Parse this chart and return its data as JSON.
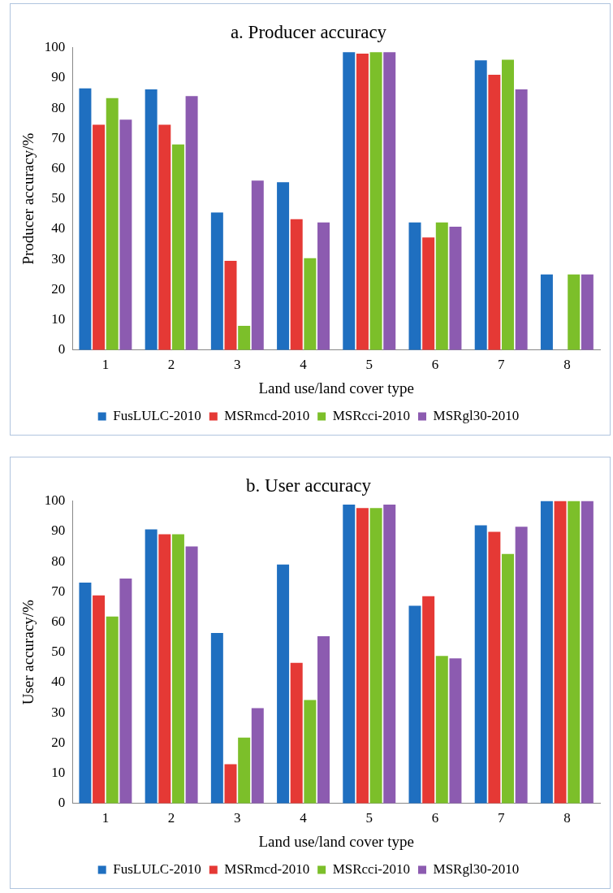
{
  "chart_data": [
    {
      "type": "bar",
      "title": "a. Producer accuracy",
      "xlabel": "Land use/land cover type",
      "ylabel": "Producer accuracy/%",
      "categories": [
        "1",
        "2",
        "3",
        "4",
        "5",
        "6",
        "7",
        "8"
      ],
      "ylim": [
        0,
        100
      ],
      "yticks": [
        0,
        10,
        20,
        30,
        40,
        50,
        60,
        70,
        80,
        90,
        100
      ],
      "grid": false,
      "legend": "bottom",
      "series": [
        {
          "name": "FusLULC-2010",
          "color": "#1f6fc0",
          "values": [
            86.5,
            86.2,
            45.5,
            55.5,
            98.5,
            42.2,
            95.8,
            25
          ]
        },
        {
          "name": "MSRmcd-2010",
          "color": "#e53935",
          "values": [
            74.5,
            74.5,
            29.5,
            43.3,
            98,
            37.2,
            91,
            0
          ]
        },
        {
          "name": "MSRcci-2010",
          "color": "#7cbf2a",
          "values": [
            83.3,
            68,
            8,
            30.4,
            98.5,
            42.2,
            96,
            25
          ]
        },
        {
          "name": "MSRgl30-2010",
          "color": "#8c5bb0",
          "values": [
            76.2,
            84,
            56,
            42.2,
            98.5,
            40.8,
            86.2,
            25
          ]
        }
      ]
    },
    {
      "type": "bar",
      "title": "b. User accuracy",
      "xlabel": "Land use/land cover type",
      "ylabel": "User accuracy/%",
      "categories": [
        "1",
        "2",
        "3",
        "4",
        "5",
        "6",
        "7",
        "8"
      ],
      "ylim": [
        0,
        100
      ],
      "yticks": [
        0,
        10,
        20,
        30,
        40,
        50,
        60,
        70,
        80,
        90,
        100
      ],
      "grid": false,
      "legend": "bottom",
      "series": [
        {
          "name": "FusLULC-2010",
          "color": "#1f6fc0",
          "values": [
            73,
            90.6,
            56.4,
            79,
            98.8,
            65.4,
            92,
            100
          ]
        },
        {
          "name": "MSRmcd-2010",
          "color": "#e53935",
          "values": [
            68.8,
            89,
            13,
            46.5,
            97.7,
            68.5,
            89.8,
            100
          ]
        },
        {
          "name": "MSRcci-2010",
          "color": "#7cbf2a",
          "values": [
            61.8,
            89,
            21.8,
            34.2,
            97.7,
            48.8,
            82.5,
            100
          ]
        },
        {
          "name": "MSRgl30-2010",
          "color": "#8c5bb0",
          "values": [
            74.4,
            85,
            31.5,
            55.3,
            98.8,
            48,
            91.5,
            100
          ]
        }
      ]
    }
  ]
}
